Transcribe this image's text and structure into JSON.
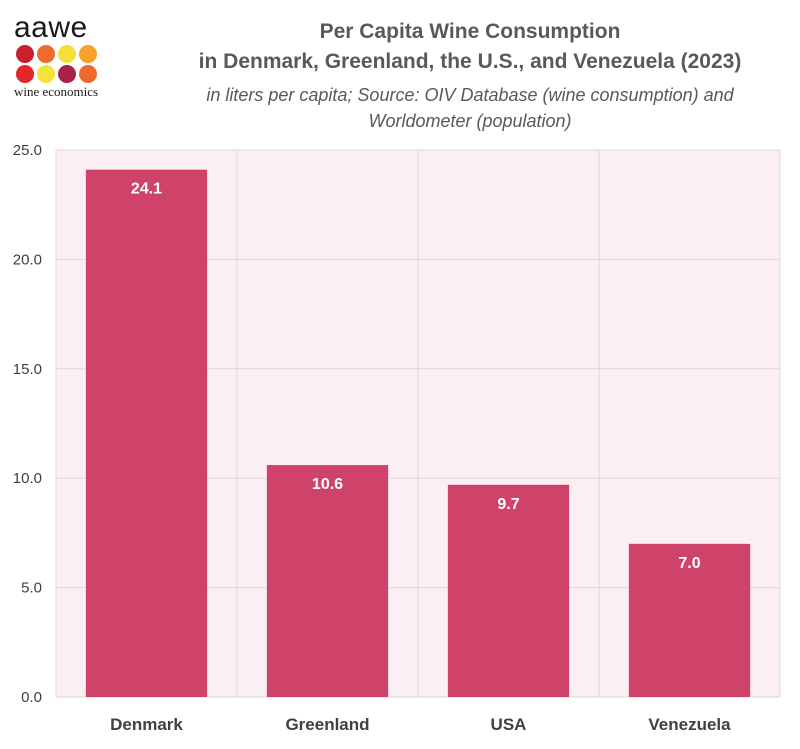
{
  "logo": {
    "word": "aawe",
    "subtitle": "wine economics",
    "dot_colors": [
      "#c8202f",
      "#ee6b2d",
      "#f3e13b",
      "#f7a12a",
      "#e4262a",
      "#f4e43a",
      "#a7234a",
      "#ee6b2d"
    ]
  },
  "colors": {
    "bar": "#cf436b",
    "plot_bg": "#fbeff3",
    "grid": "#d9d9d9",
    "label": "#ffffff",
    "axis_text": "#404040"
  },
  "chart_data": {
    "type": "bar",
    "title_line1": "Per Capita Wine Consumption",
    "title_line2": "in Denmark, Greenland, the U.S., and Venezuela (2023)",
    "subtitle_line1": "in liters per capita; Source: OIV Database (wine consumption) and",
    "subtitle_line2": "Worldometer (population)",
    "categories": [
      "Denmark",
      "Greenland",
      "USA",
      "Venezuela"
    ],
    "values": [
      24.1,
      10.6,
      9.7,
      7.0
    ],
    "data_labels": [
      "24.1",
      "10.6",
      "9.7",
      "7.0"
    ],
    "xlabel": "",
    "ylabel": "",
    "ylim": [
      0,
      25
    ],
    "yticks": [
      0,
      5,
      10,
      15,
      20,
      25
    ],
    "ytick_labels": [
      "0.0",
      "5.0",
      "10.0",
      "15.0",
      "20.0",
      "25.0"
    ],
    "grid": true,
    "legend": "none"
  }
}
